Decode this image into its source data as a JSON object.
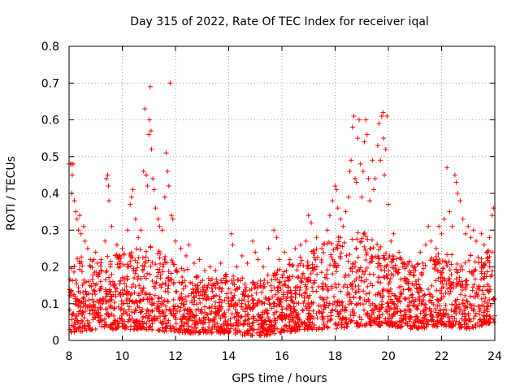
{
  "chart_data": {
    "type": "scatter",
    "title": "Day 315 of 2022, Rate Of TEC Index for receiver iqal",
    "xlabel": "GPS time / hours",
    "ylabel": "ROTI / TECUs",
    "xlim": [
      8,
      24
    ],
    "ylim": [
      0,
      0.8
    ],
    "xticks": [
      "8",
      "10",
      "12",
      "14",
      "16",
      "18",
      "20",
      "22",
      "24"
    ],
    "yticks": [
      "0",
      "0.1",
      "0.2",
      "0.3",
      "0.4",
      "0.5",
      "0.6",
      "0.7",
      "0.8"
    ],
    "grid": true,
    "marker": "+",
    "marker_color": "#ff0000",
    "series": [
      {
        "name": "ROTI",
        "points": [
          [
            8.0,
            0.48
          ],
          [
            8.05,
            0.48
          ],
          [
            8.1,
            0.48
          ],
          [
            8.15,
            0.48
          ],
          [
            8.12,
            0.45
          ],
          [
            8.1,
            0.4
          ],
          [
            8.2,
            0.38
          ],
          [
            8.25,
            0.35
          ],
          [
            8.3,
            0.33
          ],
          [
            8.35,
            0.3
          ],
          [
            8.4,
            0.34
          ],
          [
            8.45,
            0.29
          ],
          [
            8.55,
            0.31
          ],
          [
            8.6,
            0.27
          ],
          [
            8.7,
            0.25
          ],
          [
            8.8,
            0.22
          ],
          [
            9.0,
            0.24
          ],
          [
            9.2,
            0.22
          ],
          [
            9.35,
            0.27
          ],
          [
            9.4,
            0.44
          ],
          [
            9.45,
            0.45
          ],
          [
            9.48,
            0.42
          ],
          [
            9.5,
            0.38
          ],
          [
            9.6,
            0.31
          ],
          [
            9.8,
            0.26
          ],
          [
            10.0,
            0.25
          ],
          [
            10.2,
            0.3
          ],
          [
            10.3,
            0.37
          ],
          [
            10.35,
            0.39
          ],
          [
            10.4,
            0.41
          ],
          [
            10.5,
            0.33
          ],
          [
            10.6,
            0.28
          ],
          [
            10.7,
            0.3
          ],
          [
            10.8,
            0.46
          ],
          [
            10.85,
            0.63
          ],
          [
            10.9,
            0.45
          ],
          [
            10.95,
            0.42
          ],
          [
            11.0,
            0.56
          ],
          [
            11.02,
            0.6
          ],
          [
            11.05,
            0.69
          ],
          [
            11.08,
            0.57
          ],
          [
            11.1,
            0.52
          ],
          [
            11.15,
            0.44
          ],
          [
            11.2,
            0.41
          ],
          [
            11.25,
            0.36
          ],
          [
            11.35,
            0.33
          ],
          [
            11.4,
            0.31
          ],
          [
            11.5,
            0.3
          ],
          [
            11.6,
            0.39
          ],
          [
            11.65,
            0.51
          ],
          [
            11.7,
            0.46
          ],
          [
            11.75,
            0.42
          ],
          [
            11.8,
            0.7
          ],
          [
            11.85,
            0.34
          ],
          [
            11.9,
            0.33
          ],
          [
            12.0,
            0.27
          ],
          [
            12.2,
            0.25
          ],
          [
            12.4,
            0.23
          ],
          [
            12.5,
            0.26
          ],
          [
            12.7,
            0.21
          ],
          [
            12.9,
            0.22
          ],
          [
            13.1,
            0.19
          ],
          [
            13.3,
            0.2
          ],
          [
            13.5,
            0.19
          ],
          [
            13.7,
            0.21
          ],
          [
            13.9,
            0.18
          ],
          [
            14.1,
            0.29
          ],
          [
            14.15,
            0.26
          ],
          [
            14.3,
            0.2
          ],
          [
            14.5,
            0.23
          ],
          [
            14.7,
            0.21
          ],
          [
            14.9,
            0.27
          ],
          [
            15.0,
            0.24
          ],
          [
            15.1,
            0.22
          ],
          [
            15.3,
            0.2
          ],
          [
            15.5,
            0.25
          ],
          [
            15.7,
            0.3
          ],
          [
            15.8,
            0.28
          ],
          [
            15.9,
            0.22
          ],
          [
            16.1,
            0.24
          ],
          [
            16.3,
            0.22
          ],
          [
            16.5,
            0.25
          ],
          [
            16.7,
            0.26
          ],
          [
            16.9,
            0.27
          ],
          [
            17.0,
            0.34
          ],
          [
            17.1,
            0.32
          ],
          [
            17.3,
            0.28
          ],
          [
            17.5,
            0.25
          ],
          [
            17.7,
            0.3
          ],
          [
            17.8,
            0.34
          ],
          [
            17.9,
            0.38
          ],
          [
            18.0,
            0.42
          ],
          [
            18.05,
            0.41
          ],
          [
            18.1,
            0.36
          ],
          [
            18.2,
            0.33
          ],
          [
            18.3,
            0.31
          ],
          [
            18.4,
            0.35
          ],
          [
            18.5,
            0.39
          ],
          [
            18.55,
            0.46
          ],
          [
            18.6,
            0.49
          ],
          [
            18.65,
            0.58
          ],
          [
            18.7,
            0.61
          ],
          [
            18.75,
            0.44
          ],
          [
            18.8,
            0.43
          ],
          [
            18.85,
            0.55
          ],
          [
            18.9,
            0.6
          ],
          [
            18.95,
            0.48
          ],
          [
            19.0,
            0.39
          ],
          [
            19.05,
            0.46
          ],
          [
            19.1,
            0.54
          ],
          [
            19.15,
            0.6
          ],
          [
            19.2,
            0.56
          ],
          [
            19.25,
            0.44
          ],
          [
            19.3,
            0.38
          ],
          [
            19.4,
            0.49
          ],
          [
            19.45,
            0.41
          ],
          [
            19.5,
            0.44
          ],
          [
            19.6,
            0.53
          ],
          [
            19.65,
            0.59
          ],
          [
            19.7,
            0.49
          ],
          [
            19.75,
            0.61
          ],
          [
            19.8,
            0.62
          ],
          [
            19.82,
            0.55
          ],
          [
            19.85,
            0.45
          ],
          [
            19.9,
            0.52
          ],
          [
            19.95,
            0.61
          ],
          [
            20.0,
            0.37
          ],
          [
            20.1,
            0.27
          ],
          [
            20.2,
            0.29
          ],
          [
            20.4,
            0.24
          ],
          [
            20.6,
            0.21
          ],
          [
            20.8,
            0.18
          ],
          [
            21.0,
            0.2
          ],
          [
            21.2,
            0.24
          ],
          [
            21.4,
            0.26
          ],
          [
            21.5,
            0.31
          ],
          [
            21.6,
            0.27
          ],
          [
            21.8,
            0.25
          ],
          [
            21.9,
            0.31
          ],
          [
            22.0,
            0.29
          ],
          [
            22.1,
            0.33
          ],
          [
            22.2,
            0.47
          ],
          [
            22.3,
            0.35
          ],
          [
            22.4,
            0.31
          ],
          [
            22.5,
            0.45
          ],
          [
            22.55,
            0.43
          ],
          [
            22.6,
            0.4
          ],
          [
            22.7,
            0.38
          ],
          [
            22.8,
            0.33
          ],
          [
            22.9,
            0.29
          ],
          [
            23.0,
            0.31
          ],
          [
            23.1,
            0.28
          ],
          [
            23.2,
            0.3
          ],
          [
            23.3,
            0.27
          ],
          [
            23.5,
            0.29
          ],
          [
            23.6,
            0.26
          ],
          [
            23.7,
            0.24
          ],
          [
            23.8,
            0.28
          ],
          [
            23.9,
            0.34
          ],
          [
            23.95,
            0.36
          ]
        ],
        "density_profile": {
          "hours": [
            8,
            9,
            10,
            11,
            12,
            13,
            14,
            15,
            16,
            17,
            18,
            19,
            20,
            21,
            22,
            23,
            24
          ],
          "typical_max": [
            0.24,
            0.22,
            0.24,
            0.26,
            0.22,
            0.17,
            0.18,
            0.16,
            0.2,
            0.24,
            0.28,
            0.3,
            0.24,
            0.21,
            0.24,
            0.23,
            0.25
          ],
          "typical_min": [
            0.02,
            0.03,
            0.03,
            0.03,
            0.02,
            0.02,
            0.02,
            0.01,
            0.02,
            0.03,
            0.03,
            0.04,
            0.04,
            0.03,
            0.04,
            0.03,
            0.05
          ]
        }
      }
    ]
  }
}
